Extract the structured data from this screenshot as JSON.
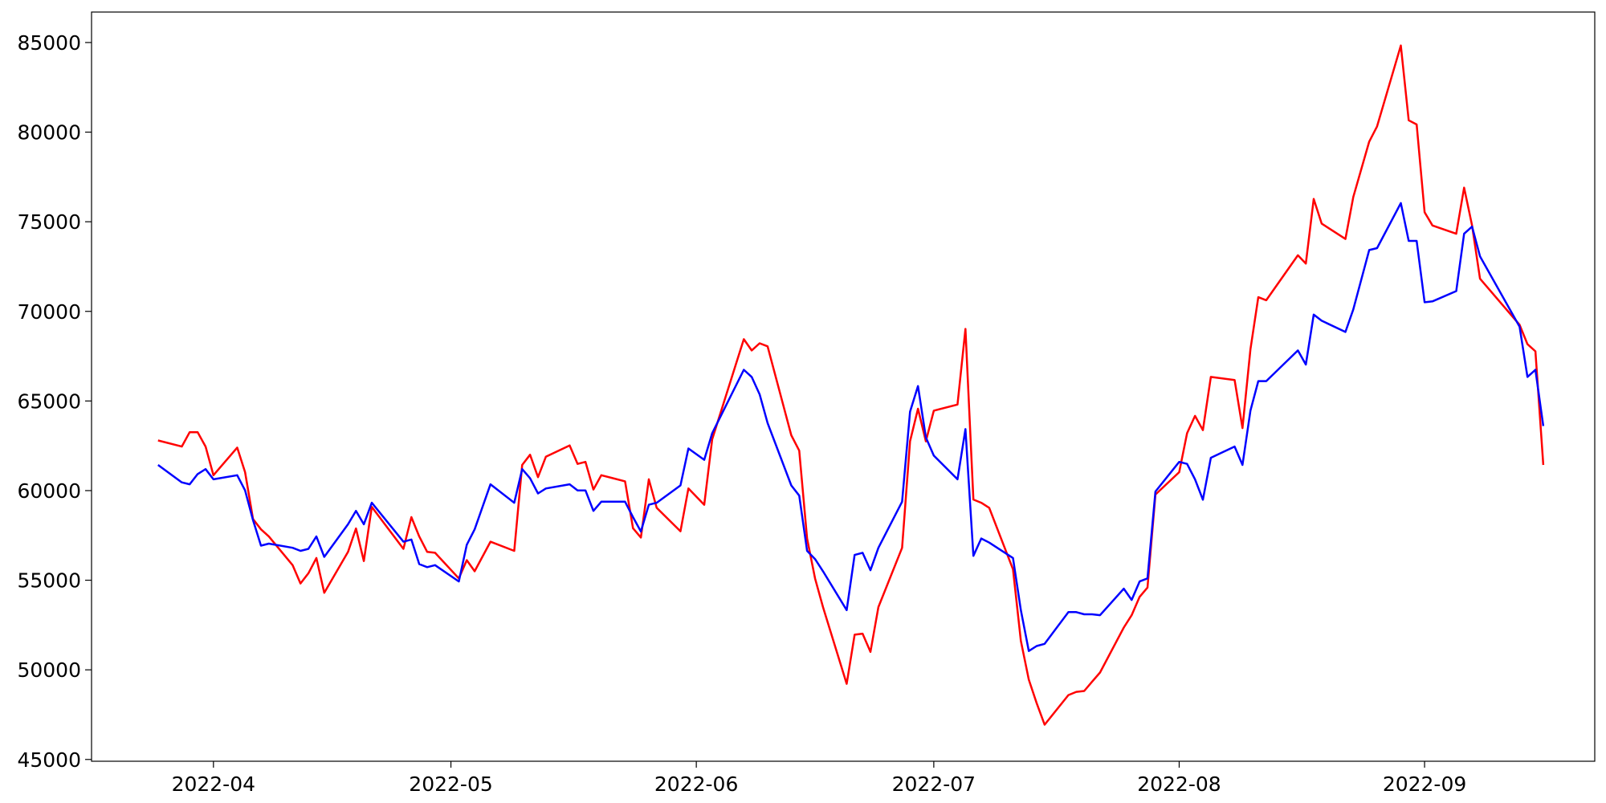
{
  "chart_data": {
    "type": "line",
    "x": [
      84,
      87,
      88,
      89,
      90,
      91,
      94,
      95,
      96,
      97,
      98,
      101,
      102,
      103,
      104,
      105,
      108,
      109,
      110,
      111,
      115,
      116,
      117,
      118,
      119,
      122,
      123,
      124,
      126,
      129,
      130,
      131,
      132,
      133,
      136,
      137,
      138,
      139,
      140,
      143,
      144,
      145,
      146,
      147,
      150,
      151,
      153,
      154,
      158,
      159,
      160,
      161,
      164,
      165,
      166,
      167,
      168,
      171,
      172,
      173,
      174,
      175,
      178,
      179,
      180,
      181,
      182,
      185,
      186,
      187,
      188,
      189,
      192,
      193,
      194,
      195,
      196,
      199,
      200,
      201,
      202,
      203,
      206,
      207,
      208,
      209,
      210,
      213,
      214,
      215,
      216,
      217,
      220,
      221,
      222,
      223,
      224,
      228,
      229,
      230,
      231,
      234,
      235,
      237,
      238,
      241,
      242,
      243,
      244,
      245,
      248,
      249,
      250,
      251,
      256,
      257,
      258,
      259
    ],
    "series": [
      {
        "color": "#ff0000",
        "values": [
          62800,
          62460,
          63260,
          63260,
          62460,
          60860,
          62400,
          61030,
          58410,
          57840,
          57440,
          55840,
          54820,
          55390,
          56240,
          54300,
          56580,
          57890,
          56070,
          59090,
          56750,
          58520,
          57440,
          56580,
          56530,
          55100,
          56120,
          55500,
          57150,
          56640,
          61430,
          62000,
          60750,
          61890,
          62520,
          61490,
          61600,
          60060,
          60860,
          60520,
          57900,
          57380,
          60630,
          59040,
          57730,
          60120,
          59210,
          62860,
          68450,
          67820,
          68220,
          68050,
          63090,
          62230,
          57330,
          55100,
          53500,
          49220,
          51960,
          52020,
          51000,
          53500,
          56810,
          62750,
          64570,
          62750,
          64460,
          64800,
          69020,
          59500,
          59320,
          59040,
          55610,
          51620,
          49450,
          48140,
          46940,
          48590,
          48770,
          48820,
          49340,
          49850,
          52360,
          53050,
          54070,
          54590,
          59780,
          61030,
          63200,
          64170,
          63370,
          66340,
          66170,
          63490,
          67880,
          70790,
          70620,
          73130,
          72670,
          76270,
          74900,
          74040,
          76380,
          79470,
          80320,
          84830,
          80660,
          80430,
          75530,
          74790,
          74330,
          76900,
          74790,
          71820,
          69250,
          68170,
          67770,
          61430
        ]
      },
      {
        "color": "#0000ff",
        "values": [
          61430,
          60460,
          60350,
          60920,
          61200,
          60630,
          60860,
          60010,
          58350,
          56930,
          57040,
          56810,
          56640,
          56750,
          57440,
          56300,
          58120,
          58870,
          58120,
          59320,
          57150,
          57270,
          55900,
          55730,
          55840,
          54930,
          56980,
          57840,
          60350,
          59320,
          61200,
          60690,
          59840,
          60120,
          60350,
          60010,
          60010,
          58870,
          59380,
          59380,
          58520,
          57720,
          59210,
          59320,
          60290,
          62350,
          61720,
          63200,
          66740,
          66340,
          65370,
          63770,
          60290,
          59720,
          56640,
          56180,
          55500,
          53330,
          56410,
          56530,
          55560,
          56810,
          59380,
          64400,
          65830,
          62970,
          61950,
          60630,
          63430,
          56360,
          57330,
          57100,
          56240,
          53330,
          51050,
          51330,
          51450,
          53220,
          53220,
          53100,
          53100,
          53050,
          54530,
          53900,
          54930,
          55100,
          59950,
          61600,
          61490,
          60630,
          59490,
          61830,
          62460,
          61430,
          64460,
          66110,
          66110,
          67820,
          67030,
          69820,
          69480,
          68850,
          70110,
          73420,
          73530,
          76040,
          73930,
          73930,
          70510,
          70560,
          71130,
          74330,
          74730,
          73070,
          69140,
          66340,
          66740,
          63600
        ]
      }
    ],
    "xlim": [
      75.6,
      265.5
    ],
    "xticks": [
      {
        "value": 91,
        "label": "2022-04"
      },
      {
        "value": 121,
        "label": "2022-05"
      },
      {
        "value": 152,
        "label": "2022-06"
      },
      {
        "value": 182,
        "label": "2022-07"
      },
      {
        "value": 213,
        "label": "2022-08"
      },
      {
        "value": 244,
        "label": "2022-09"
      }
    ],
    "ylim": [
      44900,
      86700
    ],
    "yticks": [
      45000,
      50000,
      55000,
      60000,
      65000,
      70000,
      75000,
      80000,
      85000
    ],
    "grid": false
  }
}
